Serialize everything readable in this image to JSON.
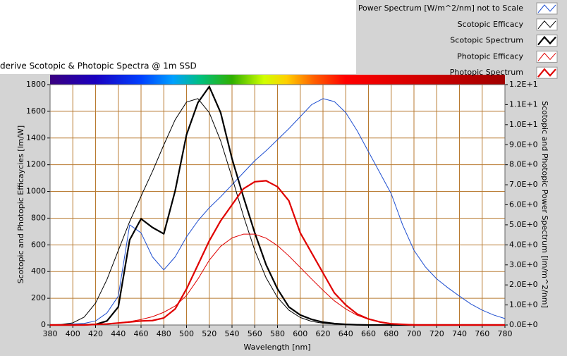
{
  "chart_data": {
    "type": "line",
    "title": "derive Scotopic & Photopic Spectra @ 1m SSD",
    "x_label": "Wavelength [nm]",
    "y_label": "Scotopic and Photopic Efficaycies [lm/W]",
    "y2_label": "Scotopic and Photopic Power Spectrum [lm/m^2/nm]",
    "x": [
      380,
      390,
      400,
      410,
      420,
      430,
      440,
      450,
      460,
      470,
      480,
      490,
      500,
      510,
      520,
      530,
      540,
      550,
      560,
      570,
      580,
      590,
      600,
      610,
      620,
      630,
      640,
      650,
      660,
      670,
      680,
      690,
      700,
      710,
      720,
      730,
      740,
      750,
      760,
      770,
      780
    ],
    "xlim": [
      380,
      780
    ],
    "xticks": [
      380,
      400,
      420,
      440,
      460,
      480,
      500,
      520,
      540,
      560,
      580,
      600,
      620,
      640,
      660,
      680,
      700,
      720,
      740,
      760,
      780
    ],
    "ylim": [
      0,
      1800
    ],
    "yticks": [
      0,
      200,
      400,
      600,
      800,
      1000,
      1200,
      1400,
      1600,
      1800
    ],
    "y2lim": [
      0,
      12
    ],
    "y2ticks": [
      {
        "value": 0,
        "label": "0.0E+0"
      },
      {
        "value": 1,
        "label": "1.0E+0"
      },
      {
        "value": 2,
        "label": "2.0E+0"
      },
      {
        "value": 3,
        "label": "3.0E+0"
      },
      {
        "value": 4,
        "label": "4.0E+0"
      },
      {
        "value": 5,
        "label": "5.0E+0"
      },
      {
        "value": 6,
        "label": "6.0E+0"
      },
      {
        "value": 7,
        "label": "7.0E+0"
      },
      {
        "value": 8,
        "label": "8.0E+0"
      },
      {
        "value": 9,
        "label": "9.0E+0"
      },
      {
        "value": 10,
        "label": "1.0E+1"
      },
      {
        "value": 11,
        "label": "1.1E+1"
      },
      {
        "value": 12,
        "label": "1.2E+1"
      }
    ],
    "grid": true,
    "legend": "top-right",
    "series": [
      {
        "name": "Power Spectrum [W/m^2/nm] not to Scale",
        "color": "#1f4fd0",
        "width": 1,
        "axis": "y2",
        "values": [
          0,
          0.02,
          0.05,
          0.08,
          0.2,
          0.6,
          1.44,
          5.0,
          4.6,
          3.4,
          2.75,
          3.4,
          4.4,
          5.2,
          5.85,
          6.4,
          7.0,
          7.6,
          8.2,
          8.7,
          9.25,
          9.8,
          10.4,
          11.0,
          11.3,
          11.15,
          10.6,
          9.7,
          8.65,
          7.6,
          6.55,
          5.0,
          3.73,
          2.9,
          2.3,
          1.85,
          1.44,
          1.05,
          0.74,
          0.5,
          0.32
        ]
      },
      {
        "name": "Scotopic Efficacy",
        "color": "#000000",
        "width": 1,
        "values": [
          1,
          4,
          16,
          59,
          164,
          340,
          558,
          774,
          964,
          1149,
          1348,
          1537,
          1669,
          1695,
          1590,
          1379,
          1105,
          818,
          559,
          353,
          206,
          111,
          56,
          27,
          13,
          6,
          3,
          1,
          1,
          0,
          0,
          0,
          0,
          0,
          0,
          0,
          0,
          0,
          0,
          0,
          0
        ]
      },
      {
        "name": "Scotopic Spectrum",
        "color": "#000000",
        "width": 2.2,
        "axis": "y2",
        "values": [
          0,
          0,
          0,
          0.01,
          0.03,
          0.2,
          0.9,
          4.25,
          5.3,
          4.87,
          4.55,
          6.7,
          9.5,
          11.1,
          11.9,
          10.6,
          8.3,
          6.4,
          4.6,
          3.0,
          1.8,
          0.9,
          0.5,
          0.28,
          0.14,
          0.07,
          0.03,
          0.01,
          0,
          0,
          0,
          0,
          0,
          0,
          0,
          0,
          0,
          0,
          0,
          0,
          0
        ]
      },
      {
        "name": "Photopic Efficacy",
        "color": "#e00000",
        "width": 1,
        "values": [
          0,
          0,
          0,
          1,
          3,
          8,
          16,
          26,
          41,
          62,
          95,
          142,
          221,
          344,
          485,
          589,
          652,
          680,
          680,
          650,
          594,
          517,
          431,
          344,
          260,
          181,
          120,
          73,
          42,
          22,
          12,
          6,
          3,
          1,
          1,
          0,
          0,
          0,
          0,
          0,
          0
        ]
      },
      {
        "name": "Photopic Spectrum",
        "color": "#e00000",
        "width": 2.2,
        "axis": "y2",
        "values": [
          0,
          0,
          0,
          0,
          0.03,
          0.05,
          0.1,
          0.15,
          0.2,
          0.22,
          0.35,
          0.8,
          1.8,
          3.0,
          4.2,
          5.2,
          6.0,
          6.8,
          7.15,
          7.2,
          6.9,
          6.2,
          4.6,
          3.6,
          2.6,
          1.6,
          1.0,
          0.55,
          0.3,
          0.15,
          0.06,
          0.03,
          0,
          0,
          0,
          0,
          0,
          0,
          0,
          0,
          0
        ]
      }
    ]
  }
}
